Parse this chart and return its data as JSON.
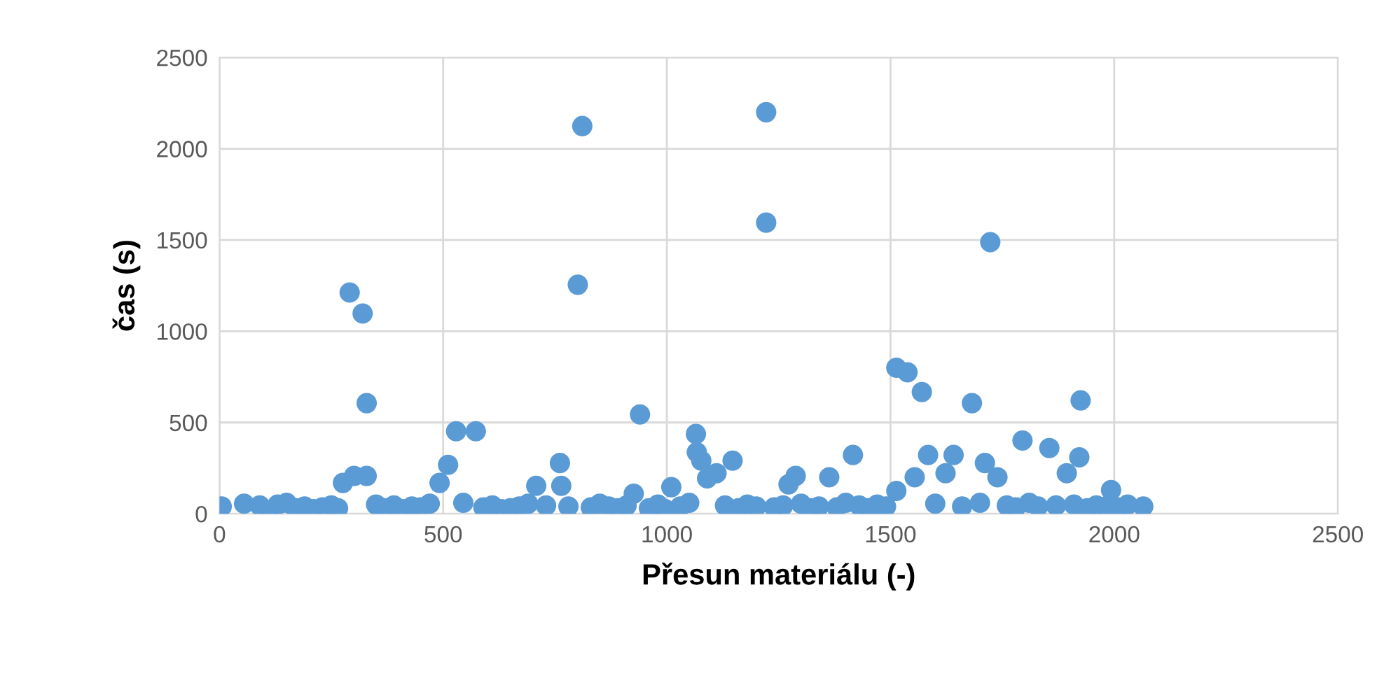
{
  "chart_data": {
    "type": "scatter",
    "xlabel": "Přesun materiálu (-)",
    "ylabel": "čas (s)",
    "xlim": [
      0,
      2500
    ],
    "ylim": [
      0,
      2500
    ],
    "xticks": [
      0,
      500,
      1000,
      1500,
      2000,
      2500
    ],
    "yticks": [
      0,
      500,
      1000,
      1500,
      2000,
      2500
    ],
    "grid": true,
    "marker": "circle",
    "series": [
      {
        "color": "#5b9bd5",
        "x": [
          5,
          55,
          90,
          110,
          130,
          150,
          170,
          190,
          210,
          230,
          250,
          265,
          276,
          291,
          301,
          320,
          329,
          329,
          350,
          370,
          390,
          410,
          430,
          450,
          470,
          492,
          511,
          529,
          545,
          573,
          590,
          610,
          630,
          650,
          670,
          690,
          708,
          730,
          761,
          764,
          780,
          801,
          811,
          830,
          850,
          870,
          890,
          910,
          926,
          940,
          960,
          980,
          996,
          1010,
          1030,
          1050,
          1065,
          1067,
          1077,
          1090,
          1111,
          1130,
          1147,
          1160,
          1180,
          1200,
          1222,
          1222,
          1240,
          1260,
          1272,
          1288,
          1300,
          1320,
          1340,
          1363,
          1380,
          1400,
          1416,
          1430,
          1450,
          1470,
          1490,
          1513,
          1513,
          1538,
          1554,
          1570,
          1584,
          1600,
          1623,
          1641,
          1660,
          1682,
          1700,
          1711,
          1723,
          1739,
          1760,
          1780,
          1795,
          1810,
          1830,
          1855,
          1870,
          1894,
          1910,
          1922,
          1925,
          1940,
          1960,
          1980,
          1993,
          2010,
          2030,
          2065
        ],
        "values": [
          40,
          55,
          45,
          20,
          50,
          60,
          30,
          40,
          25,
          35,
          45,
          30,
          169,
          1212,
          207,
          1097,
          606,
          207,
          50,
          30,
          45,
          25,
          40,
          35,
          55,
          169,
          268,
          452,
          60,
          452,
          35,
          45,
          25,
          30,
          40,
          55,
          153,
          45,
          278,
          153,
          40,
          1255,
          2124,
          35,
          55,
          40,
          30,
          45,
          110,
          544,
          30,
          50,
          25,
          146,
          40,
          60,
          437,
          337,
          291,
          194,
          222,
          45,
          291,
          30,
          50,
          40,
          2200,
          1595,
          35,
          45,
          161,
          207,
          55,
          30,
          40,
          200,
          35,
          60,
          322,
          45,
          30,
          50,
          40,
          800,
          125,
          775,
          200,
          667,
          322,
          55,
          222,
          322,
          40,
          606,
          60,
          278,
          1488,
          200,
          45,
          35,
          401,
          60,
          40,
          360,
          45,
          222,
          50,
          309,
          621,
          30,
          45,
          40,
          130,
          35,
          50,
          40
        ]
      }
    ]
  }
}
